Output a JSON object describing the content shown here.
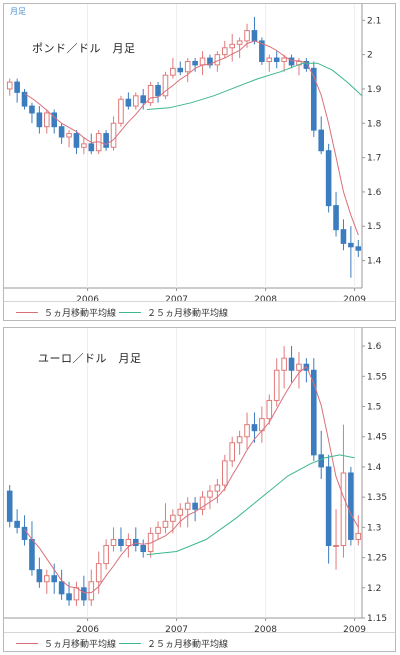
{
  "chart_data": [
    {
      "type": "candlestick",
      "title": "ポンド／ドル　月足",
      "corner_label": "月足",
      "ylim": [
        1.32,
        2.13
      ],
      "y_ticks": [
        "1.4",
        "1.5",
        "1.6",
        "1.7",
        "1.8",
        "1.9",
        "2",
        "2.1"
      ],
      "x_ticks": [
        "2006",
        "2007",
        "2008",
        "2009"
      ],
      "x_tick_index": [
        11,
        23,
        35,
        47
      ],
      "legend": [
        {
          "label": "５ヵ月移動平均線",
          "color": "#d9707a"
        },
        {
          "label": "２５ヵ月移動平均線",
          "color": "#3cb88c"
        }
      ],
      "up_color": "#e07a7a",
      "down_color": "#3b7dbf",
      "ma5_color": "#d9707a",
      "ma25_color": "#3cb88c",
      "candles": [
        [
          1.9,
          1.93,
          1.88,
          1.92
        ],
        [
          1.92,
          1.93,
          1.86,
          1.89
        ],
        [
          1.89,
          1.9,
          1.84,
          1.85
        ],
        [
          1.85,
          1.86,
          1.8,
          1.83
        ],
        [
          1.83,
          1.85,
          1.77,
          1.79
        ],
        [
          1.79,
          1.84,
          1.77,
          1.83
        ],
        [
          1.83,
          1.84,
          1.77,
          1.79
        ],
        [
          1.79,
          1.8,
          1.74,
          1.76
        ],
        [
          1.76,
          1.78,
          1.73,
          1.77
        ],
        [
          1.77,
          1.78,
          1.71,
          1.73
        ],
        [
          1.73,
          1.76,
          1.71,
          1.74
        ],
        [
          1.74,
          1.77,
          1.71,
          1.72
        ],
        [
          1.72,
          1.78,
          1.71,
          1.77
        ],
        [
          1.77,
          1.78,
          1.72,
          1.73
        ],
        [
          1.73,
          1.82,
          1.72,
          1.8
        ],
        [
          1.8,
          1.88,
          1.79,
          1.87
        ],
        [
          1.87,
          1.89,
          1.84,
          1.85
        ],
        [
          1.85,
          1.89,
          1.84,
          1.88
        ],
        [
          1.88,
          1.9,
          1.84,
          1.86
        ],
        [
          1.86,
          1.92,
          1.85,
          1.91
        ],
        [
          1.91,
          1.92,
          1.86,
          1.88
        ],
        [
          1.88,
          1.95,
          1.87,
          1.94
        ],
        [
          1.94,
          1.99,
          1.93,
          1.96
        ],
        [
          1.96,
          1.98,
          1.94,
          1.95
        ],
        [
          1.95,
          1.99,
          1.92,
          1.98
        ],
        [
          1.98,
          1.99,
          1.95,
          1.97
        ],
        [
          1.97,
          2.01,
          1.94,
          1.99
        ],
        [
          1.99,
          2.0,
          1.96,
          1.97
        ],
        [
          1.97,
          2.01,
          1.95,
          2.0
        ],
        [
          2.0,
          2.04,
          1.99,
          2.02
        ],
        [
          2.02,
          2.06,
          1.98,
          2.03
        ],
        [
          2.03,
          2.05,
          1.99,
          2.04
        ],
        [
          2.04,
          2.09,
          2.02,
          2.07
        ],
        [
          2.07,
          2.11,
          2.03,
          2.04
        ],
        [
          2.04,
          2.05,
          1.97,
          1.98
        ],
        [
          1.98,
          2.0,
          1.95,
          1.99
        ],
        [
          1.99,
          2.01,
          1.96,
          1.98
        ],
        [
          1.98,
          2.0,
          1.95,
          1.99
        ],
        [
          1.99,
          2.0,
          1.96,
          1.97
        ],
        [
          1.97,
          1.99,
          1.94,
          1.98
        ],
        [
          1.98,
          1.99,
          1.95,
          1.96
        ],
        [
          1.96,
          1.98,
          1.76,
          1.78
        ],
        [
          1.78,
          1.82,
          1.71,
          1.72
        ],
        [
          1.72,
          1.74,
          1.54,
          1.56
        ],
        [
          1.56,
          1.6,
          1.47,
          1.49
        ],
        [
          1.49,
          1.52,
          1.43,
          1.45
        ],
        [
          1.45,
          1.5,
          1.35,
          1.44
        ],
        [
          1.44,
          1.46,
          1.41,
          1.43
        ]
      ],
      "ma25": [
        [
          19,
          1.84
        ],
        [
          22,
          1.845
        ],
        [
          25,
          1.86
        ],
        [
          28,
          1.88
        ],
        [
          31,
          1.905
        ],
        [
          34,
          1.93
        ],
        [
          37,
          1.95
        ],
        [
          40,
          1.975
        ],
        [
          42,
          1.975
        ],
        [
          44,
          1.955
        ],
        [
          46,
          1.92
        ],
        [
          48,
          1.88
        ]
      ]
    },
    {
      "type": "candlestick",
      "title": "ユーロ／ドル　月足",
      "ylim": [
        1.15,
        1.62
      ],
      "y_ticks": [
        "1.15",
        "1.2",
        "1.25",
        "1.3",
        "1.35",
        "1.4",
        "1.45",
        "1.5",
        "1.55",
        "1.6"
      ],
      "x_ticks": [
        "2006",
        "2007",
        "2008",
        "2009"
      ],
      "x_tick_index": [
        11,
        23,
        35,
        47
      ],
      "legend": [
        {
          "label": "５ヵ月移動平均線",
          "color": "#d9707a"
        },
        {
          "label": "２５ヵ月移動平均線",
          "color": "#3cb88c"
        }
      ],
      "up_color": "#e07a7a",
      "down_color": "#3b7dbf",
      "ma5_color": "#d9707a",
      "ma25_color": "#3cb88c",
      "candles": [
        [
          1.36,
          1.37,
          1.3,
          1.31
        ],
        [
          1.31,
          1.33,
          1.29,
          1.3
        ],
        [
          1.3,
          1.32,
          1.27,
          1.28
        ],
        [
          1.28,
          1.31,
          1.22,
          1.23
        ],
        [
          1.23,
          1.25,
          1.2,
          1.21
        ],
        [
          1.21,
          1.23,
          1.19,
          1.22
        ],
        [
          1.22,
          1.24,
          1.19,
          1.21
        ],
        [
          1.21,
          1.23,
          1.18,
          1.19
        ],
        [
          1.19,
          1.21,
          1.17,
          1.18
        ],
        [
          1.18,
          1.21,
          1.17,
          1.2
        ],
        [
          1.2,
          1.22,
          1.17,
          1.18
        ],
        [
          1.18,
          1.23,
          1.17,
          1.21
        ],
        [
          1.21,
          1.26,
          1.19,
          1.24
        ],
        [
          1.24,
          1.28,
          1.23,
          1.27
        ],
        [
          1.27,
          1.3,
          1.26,
          1.28
        ],
        [
          1.28,
          1.3,
          1.26,
          1.27
        ],
        [
          1.27,
          1.29,
          1.25,
          1.28
        ],
        [
          1.28,
          1.3,
          1.26,
          1.27
        ],
        [
          1.27,
          1.28,
          1.25,
          1.26
        ],
        [
          1.26,
          1.3,
          1.25,
          1.29
        ],
        [
          1.29,
          1.31,
          1.28,
          1.3
        ],
        [
          1.3,
          1.34,
          1.29,
          1.31
        ],
        [
          1.31,
          1.33,
          1.29,
          1.32
        ],
        [
          1.32,
          1.34,
          1.3,
          1.33
        ],
        [
          1.33,
          1.35,
          1.3,
          1.34
        ],
        [
          1.34,
          1.35,
          1.31,
          1.33
        ],
        [
          1.33,
          1.36,
          1.32,
          1.35
        ],
        [
          1.35,
          1.37,
          1.33,
          1.36
        ],
        [
          1.36,
          1.38,
          1.34,
          1.37
        ],
        [
          1.37,
          1.42,
          1.36,
          1.41
        ],
        [
          1.41,
          1.45,
          1.4,
          1.44
        ],
        [
          1.44,
          1.46,
          1.42,
          1.45
        ],
        [
          1.45,
          1.49,
          1.43,
          1.47
        ],
        [
          1.47,
          1.49,
          1.44,
          1.46
        ],
        [
          1.46,
          1.5,
          1.44,
          1.48
        ],
        [
          1.48,
          1.52,
          1.47,
          1.51
        ],
        [
          1.51,
          1.58,
          1.5,
          1.56
        ],
        [
          1.56,
          1.6,
          1.53,
          1.58
        ],
        [
          1.58,
          1.6,
          1.54,
          1.56
        ],
        [
          1.56,
          1.59,
          1.53,
          1.57
        ],
        [
          1.57,
          1.58,
          1.54,
          1.56
        ],
        [
          1.56,
          1.58,
          1.41,
          1.42
        ],
        [
          1.42,
          1.46,
          1.38,
          1.4
        ],
        [
          1.4,
          1.42,
          1.24,
          1.27
        ],
        [
          1.27,
          1.33,
          1.23,
          1.27
        ],
        [
          1.27,
          1.47,
          1.25,
          1.39
        ],
        [
          1.39,
          1.4,
          1.27,
          1.28
        ],
        [
          1.28,
          1.32,
          1.27,
          1.29
        ]
      ],
      "ma25": [
        [
          19,
          1.255
        ],
        [
          23,
          1.26
        ],
        [
          27,
          1.28
        ],
        [
          31,
          1.315
        ],
        [
          35,
          1.355
        ],
        [
          38,
          1.385
        ],
        [
          41,
          1.405
        ],
        [
          43,
          1.415
        ],
        [
          45,
          1.42
        ],
        [
          47,
          1.415
        ]
      ]
    }
  ]
}
